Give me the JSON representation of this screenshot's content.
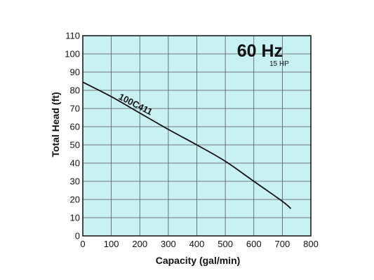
{
  "chart_data": {
    "type": "line",
    "xlabel": "Capacity (gal/min)",
    "ylabel": "Total Head (ft)",
    "xlim": [
      0,
      800
    ],
    "ylim": [
      0,
      110
    ],
    "xticks": [
      0,
      100,
      200,
      300,
      400,
      500,
      600,
      700,
      800
    ],
    "yticks": [
      0,
      10,
      20,
      30,
      40,
      50,
      60,
      70,
      80,
      90,
      100,
      110
    ],
    "grid": true,
    "plot_background": "#c8f1f1",
    "line_color": "#111111",
    "annotations": {
      "frequency": "60 Hz",
      "power": "15 HP"
    },
    "series": [
      {
        "name": "100C411",
        "x": [
          0,
          100,
          200,
          300,
          400,
          500,
          600,
          700,
          730
        ],
        "y": [
          84.5,
          76.5,
          67.5,
          58.5,
          50,
          41,
          30,
          19,
          15
        ]
      }
    ]
  }
}
